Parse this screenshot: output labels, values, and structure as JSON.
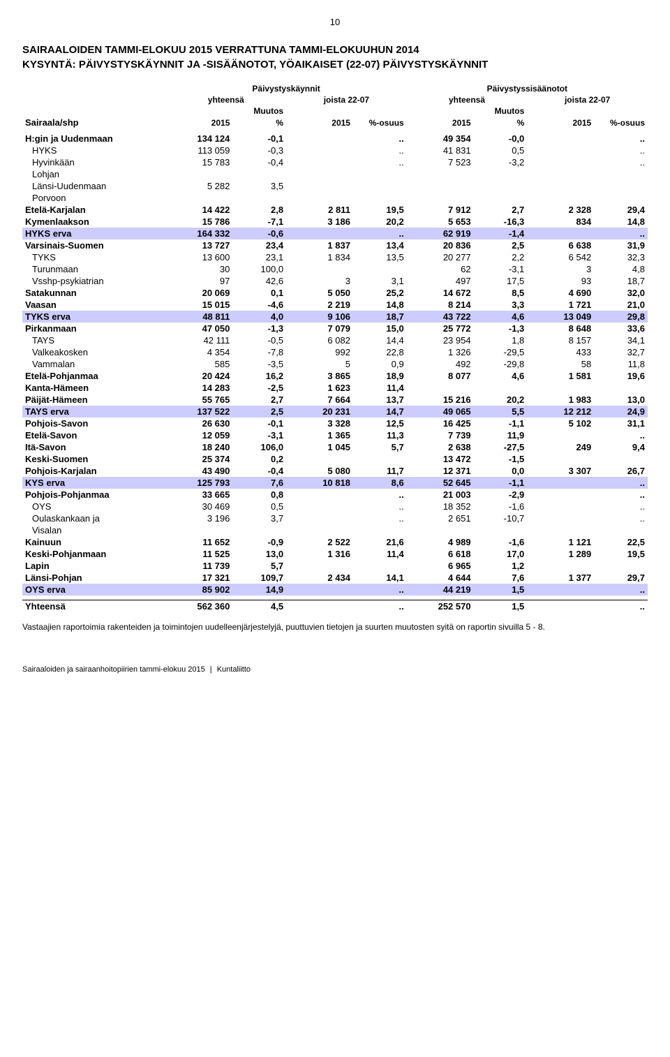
{
  "page_number": "10",
  "title": "SAIRAALOIDEN TAMMI-ELOKUU 2015 VERRATTUNA TAMMI-ELOKUUHUN 2014",
  "subtitle": "KYSYNTÄ: PÄIVYSTYSKÄYNNIT JA -SISÄÄNOTOT, YÖAIKAISET (22-07) PÄIVYSTYSKÄYNNIT",
  "header": {
    "group1": "Päivystyskäynnit",
    "group2": "Päivystyssisäänotot",
    "yhteensa": "yhteensä",
    "joista": "joista 22-07",
    "muutos": "Muutos",
    "y2015": "2015",
    "pct": "%",
    "osuus": "%-osuus",
    "sairaala": "Sairaala/shp"
  },
  "rows": [
    {
      "cls": "bold-row",
      "label": "H:gin ja Uudenmaan",
      "c": [
        "134 124",
        "-0,1",
        "",
        "..",
        "49 354",
        "-0,0",
        "",
        "..",
        ""
      ]
    },
    {
      "cls": "",
      "indent": 1,
      "label": "HYKS",
      "c": [
        "113 059",
        "-0,3",
        "",
        "..",
        "41 831",
        "0,5",
        "",
        "..",
        ""
      ]
    },
    {
      "cls": "",
      "indent": 1,
      "label": "Hyvinkään",
      "c": [
        "15 783",
        "-0,4",
        "",
        "..",
        "7 523",
        "-3,2",
        "",
        "..",
        ""
      ]
    },
    {
      "cls": "",
      "indent": 1,
      "label": "Lohjan",
      "c": [
        "",
        "",
        "",
        "",
        "",
        "",
        "",
        "",
        ""
      ]
    },
    {
      "cls": "",
      "indent": 1,
      "label": "Länsi-Uudenmaan",
      "c": [
        "5 282",
        "3,5",
        "",
        "",
        "",
        "",
        "",
        "",
        ""
      ]
    },
    {
      "cls": "",
      "indent": 1,
      "label": "Porvoon",
      "c": [
        "",
        "",
        "",
        "",
        "",
        "",
        "",
        "",
        ""
      ]
    },
    {
      "cls": "bold-row",
      "label": "Etelä-Karjalan",
      "c": [
        "14 422",
        "2,8",
        "2 811",
        "19,5",
        "7 912",
        "2,7",
        "2 328",
        "29,4",
        ""
      ]
    },
    {
      "cls": "bold-row",
      "label": "Kymenlaakson",
      "c": [
        "15 786",
        "-7,1",
        "3 186",
        "20,2",
        "5 653",
        "-16,3",
        "834",
        "14,8",
        ""
      ]
    },
    {
      "cls": "erva-row",
      "label": "HYKS erva",
      "c": [
        "164 332",
        "-0,6",
        "",
        "..",
        "62 919",
        "-1,4",
        "",
        "..",
        ""
      ]
    },
    {
      "cls": "bold-row",
      "label": "Varsinais-Suomen",
      "c": [
        "13 727",
        "23,4",
        "1 837",
        "13,4",
        "20 836",
        "2,5",
        "6 638",
        "31,9",
        ""
      ]
    },
    {
      "cls": "",
      "indent": 1,
      "label": "TYKS",
      "c": [
        "13 600",
        "23,1",
        "1 834",
        "13,5",
        "20 277",
        "2,2",
        "6 542",
        "32,3",
        ""
      ]
    },
    {
      "cls": "",
      "indent": 1,
      "label": "Turunmaan",
      "c": [
        "30",
        "100,0",
        "",
        "",
        "62",
        "-3,1",
        "3",
        "4,8",
        ""
      ]
    },
    {
      "cls": "",
      "indent": 1,
      "label": "Vsshp-psykiatrian",
      "c": [
        "97",
        "42,6",
        "3",
        "3,1",
        "497",
        "17,5",
        "93",
        "18,7",
        ""
      ]
    },
    {
      "cls": "bold-row",
      "label": "Satakunnan",
      "c": [
        "20 069",
        "0,1",
        "5 050",
        "25,2",
        "14 672",
        "8,5",
        "4 690",
        "32,0",
        ""
      ]
    },
    {
      "cls": "bold-row",
      "label": "Vaasan",
      "c": [
        "15 015",
        "-4,6",
        "2 219",
        "14,8",
        "8 214",
        "3,3",
        "1 721",
        "21,0",
        ""
      ]
    },
    {
      "cls": "erva-row",
      "label": "TYKS erva",
      "c": [
        "48 811",
        "4,0",
        "9 106",
        "18,7",
        "43 722",
        "4,6",
        "13 049",
        "29,8",
        ""
      ]
    },
    {
      "cls": "bold-row",
      "label": "Pirkanmaan",
      "c": [
        "47 050",
        "-1,3",
        "7 079",
        "15,0",
        "25 772",
        "-1,3",
        "8 648",
        "33,6",
        ""
      ]
    },
    {
      "cls": "",
      "indent": 1,
      "label": "TAYS",
      "c": [
        "42 111",
        "-0,5",
        "6 082",
        "14,4",
        "23 954",
        "1,8",
        "8 157",
        "34,1",
        ""
      ]
    },
    {
      "cls": "",
      "indent": 1,
      "label": "Valkeakosken",
      "c": [
        "4 354",
        "-7,8",
        "992",
        "22,8",
        "1 326",
        "-29,5",
        "433",
        "32,7",
        ""
      ]
    },
    {
      "cls": "",
      "indent": 1,
      "label": "Vammalan",
      "c": [
        "585",
        "-3,5",
        "5",
        "0,9",
        "492",
        "-29,8",
        "58",
        "11,8",
        ""
      ]
    },
    {
      "cls": "bold-row",
      "label": "Etelä-Pohjanmaa",
      "c": [
        "20 424",
        "16,2",
        "3 865",
        "18,9",
        "8 077",
        "4,6",
        "1 581",
        "19,6",
        ""
      ]
    },
    {
      "cls": "bold-row",
      "label": "Kanta-Hämeen",
      "c": [
        "14 283",
        "-2,5",
        "1 623",
        "11,4",
        "",
        "",
        "",
        "",
        ""
      ]
    },
    {
      "cls": "bold-row",
      "label": "Päijät-Hämeen",
      "c": [
        "55 765",
        "2,7",
        "7 664",
        "13,7",
        "15 216",
        "20,2",
        "1 983",
        "13,0",
        ""
      ]
    },
    {
      "cls": "erva-row",
      "label": "TAYS erva",
      "c": [
        "137 522",
        "2,5",
        "20 231",
        "14,7",
        "49 065",
        "5,5",
        "12 212",
        "24,9",
        ""
      ]
    },
    {
      "cls": "bold-row",
      "label": "Pohjois-Savon",
      "c": [
        "26 630",
        "-0,1",
        "3 328",
        "12,5",
        "16 425",
        "-1,1",
        "5 102",
        "31,1",
        ""
      ]
    },
    {
      "cls": "bold-row",
      "label": "Etelä-Savon",
      "c": [
        "12 059",
        "-3,1",
        "1 365",
        "11,3",
        "7 739",
        "11,9",
        "",
        "..",
        ""
      ]
    },
    {
      "cls": "bold-row",
      "label": "Itä-Savon",
      "c": [
        "18 240",
        "106,0",
        "1 045",
        "5,7",
        "2 638",
        "-27,5",
        "249",
        "9,4",
        ""
      ]
    },
    {
      "cls": "bold-row",
      "label": "Keski-Suomen",
      "c": [
        "25 374",
        "0,2",
        "",
        "",
        "13 472",
        "-1,5",
        "",
        "",
        ""
      ]
    },
    {
      "cls": "bold-row",
      "label": "Pohjois-Karjalan",
      "c": [
        "43 490",
        "-0,4",
        "5 080",
        "11,7",
        "12 371",
        "0,0",
        "3 307",
        "26,7",
        ""
      ]
    },
    {
      "cls": "erva-row",
      "label": "KYS erva",
      "c": [
        "125 793",
        "7,6",
        "10 818",
        "8,6",
        "52 645",
        "-1,1",
        "",
        "..",
        ""
      ]
    },
    {
      "cls": "bold-row",
      "label": "Pohjois-Pohjanmaa",
      "c": [
        "33 665",
        "0,8",
        "",
        "..",
        "21 003",
        "-2,9",
        "",
        "..",
        ""
      ]
    },
    {
      "cls": "",
      "indent": 1,
      "label": "OYS",
      "c": [
        "30 469",
        "0,5",
        "",
        "..",
        "18 352",
        "-1,6",
        "",
        "..",
        ""
      ]
    },
    {
      "cls": "",
      "indent": 1,
      "label": "Oulaskankaan ja",
      "c": [
        "3 196",
        "3,7",
        "",
        "..",
        "2 651",
        "-10,7",
        "",
        "..",
        ""
      ]
    },
    {
      "cls": "",
      "indent": 1,
      "label": "Visalan",
      "c": [
        "",
        "",
        "",
        "",
        "",
        "",
        "",
        "",
        ""
      ]
    },
    {
      "cls": "bold-row",
      "label": "Kainuun",
      "c": [
        "11 652",
        "-0,9",
        "2 522",
        "21,6",
        "4 989",
        "-1,6",
        "1 121",
        "22,5",
        ""
      ]
    },
    {
      "cls": "bold-row",
      "label": "Keski-Pohjanmaan",
      "c": [
        "11 525",
        "13,0",
        "1 316",
        "11,4",
        "6 618",
        "17,0",
        "1 289",
        "19,5",
        ""
      ]
    },
    {
      "cls": "bold-row",
      "label": "Lapin",
      "c": [
        "11 739",
        "5,7",
        "",
        "",
        "6 965",
        "1,2",
        "",
        "",
        ""
      ]
    },
    {
      "cls": "bold-row",
      "label": "Länsi-Pohjan",
      "c": [
        "17 321",
        "109,7",
        "2 434",
        "14,1",
        "4 644",
        "7,6",
        "1 377",
        "29,7",
        ""
      ]
    },
    {
      "cls": "erva-row",
      "label": "OYS erva",
      "c": [
        "85 902",
        "14,9",
        "",
        "..",
        "44 219",
        "1,5",
        "",
        "..",
        ""
      ]
    }
  ],
  "total": {
    "label": "Yhteensä",
    "c": [
      "562 360",
      "4,5",
      "",
      "..",
      "252 570",
      "1,5",
      "",
      "..",
      ""
    ]
  },
  "footnote": "Vastaajien raportoimia rakenteiden ja toimintojen uudelleenjärjestelyjä, puuttuvien tietojen ja suurten muutosten syitä on raportin sivuilla 5 - 8.",
  "footer_left": "Sairaaloiden ja sairaanhoitopiirien tammi-elokuu 2015",
  "footer_right": "Kuntaliitto",
  "colors": {
    "erva_bg": "#ccccff",
    "text": "#000000",
    "bg": "#ffffff"
  }
}
